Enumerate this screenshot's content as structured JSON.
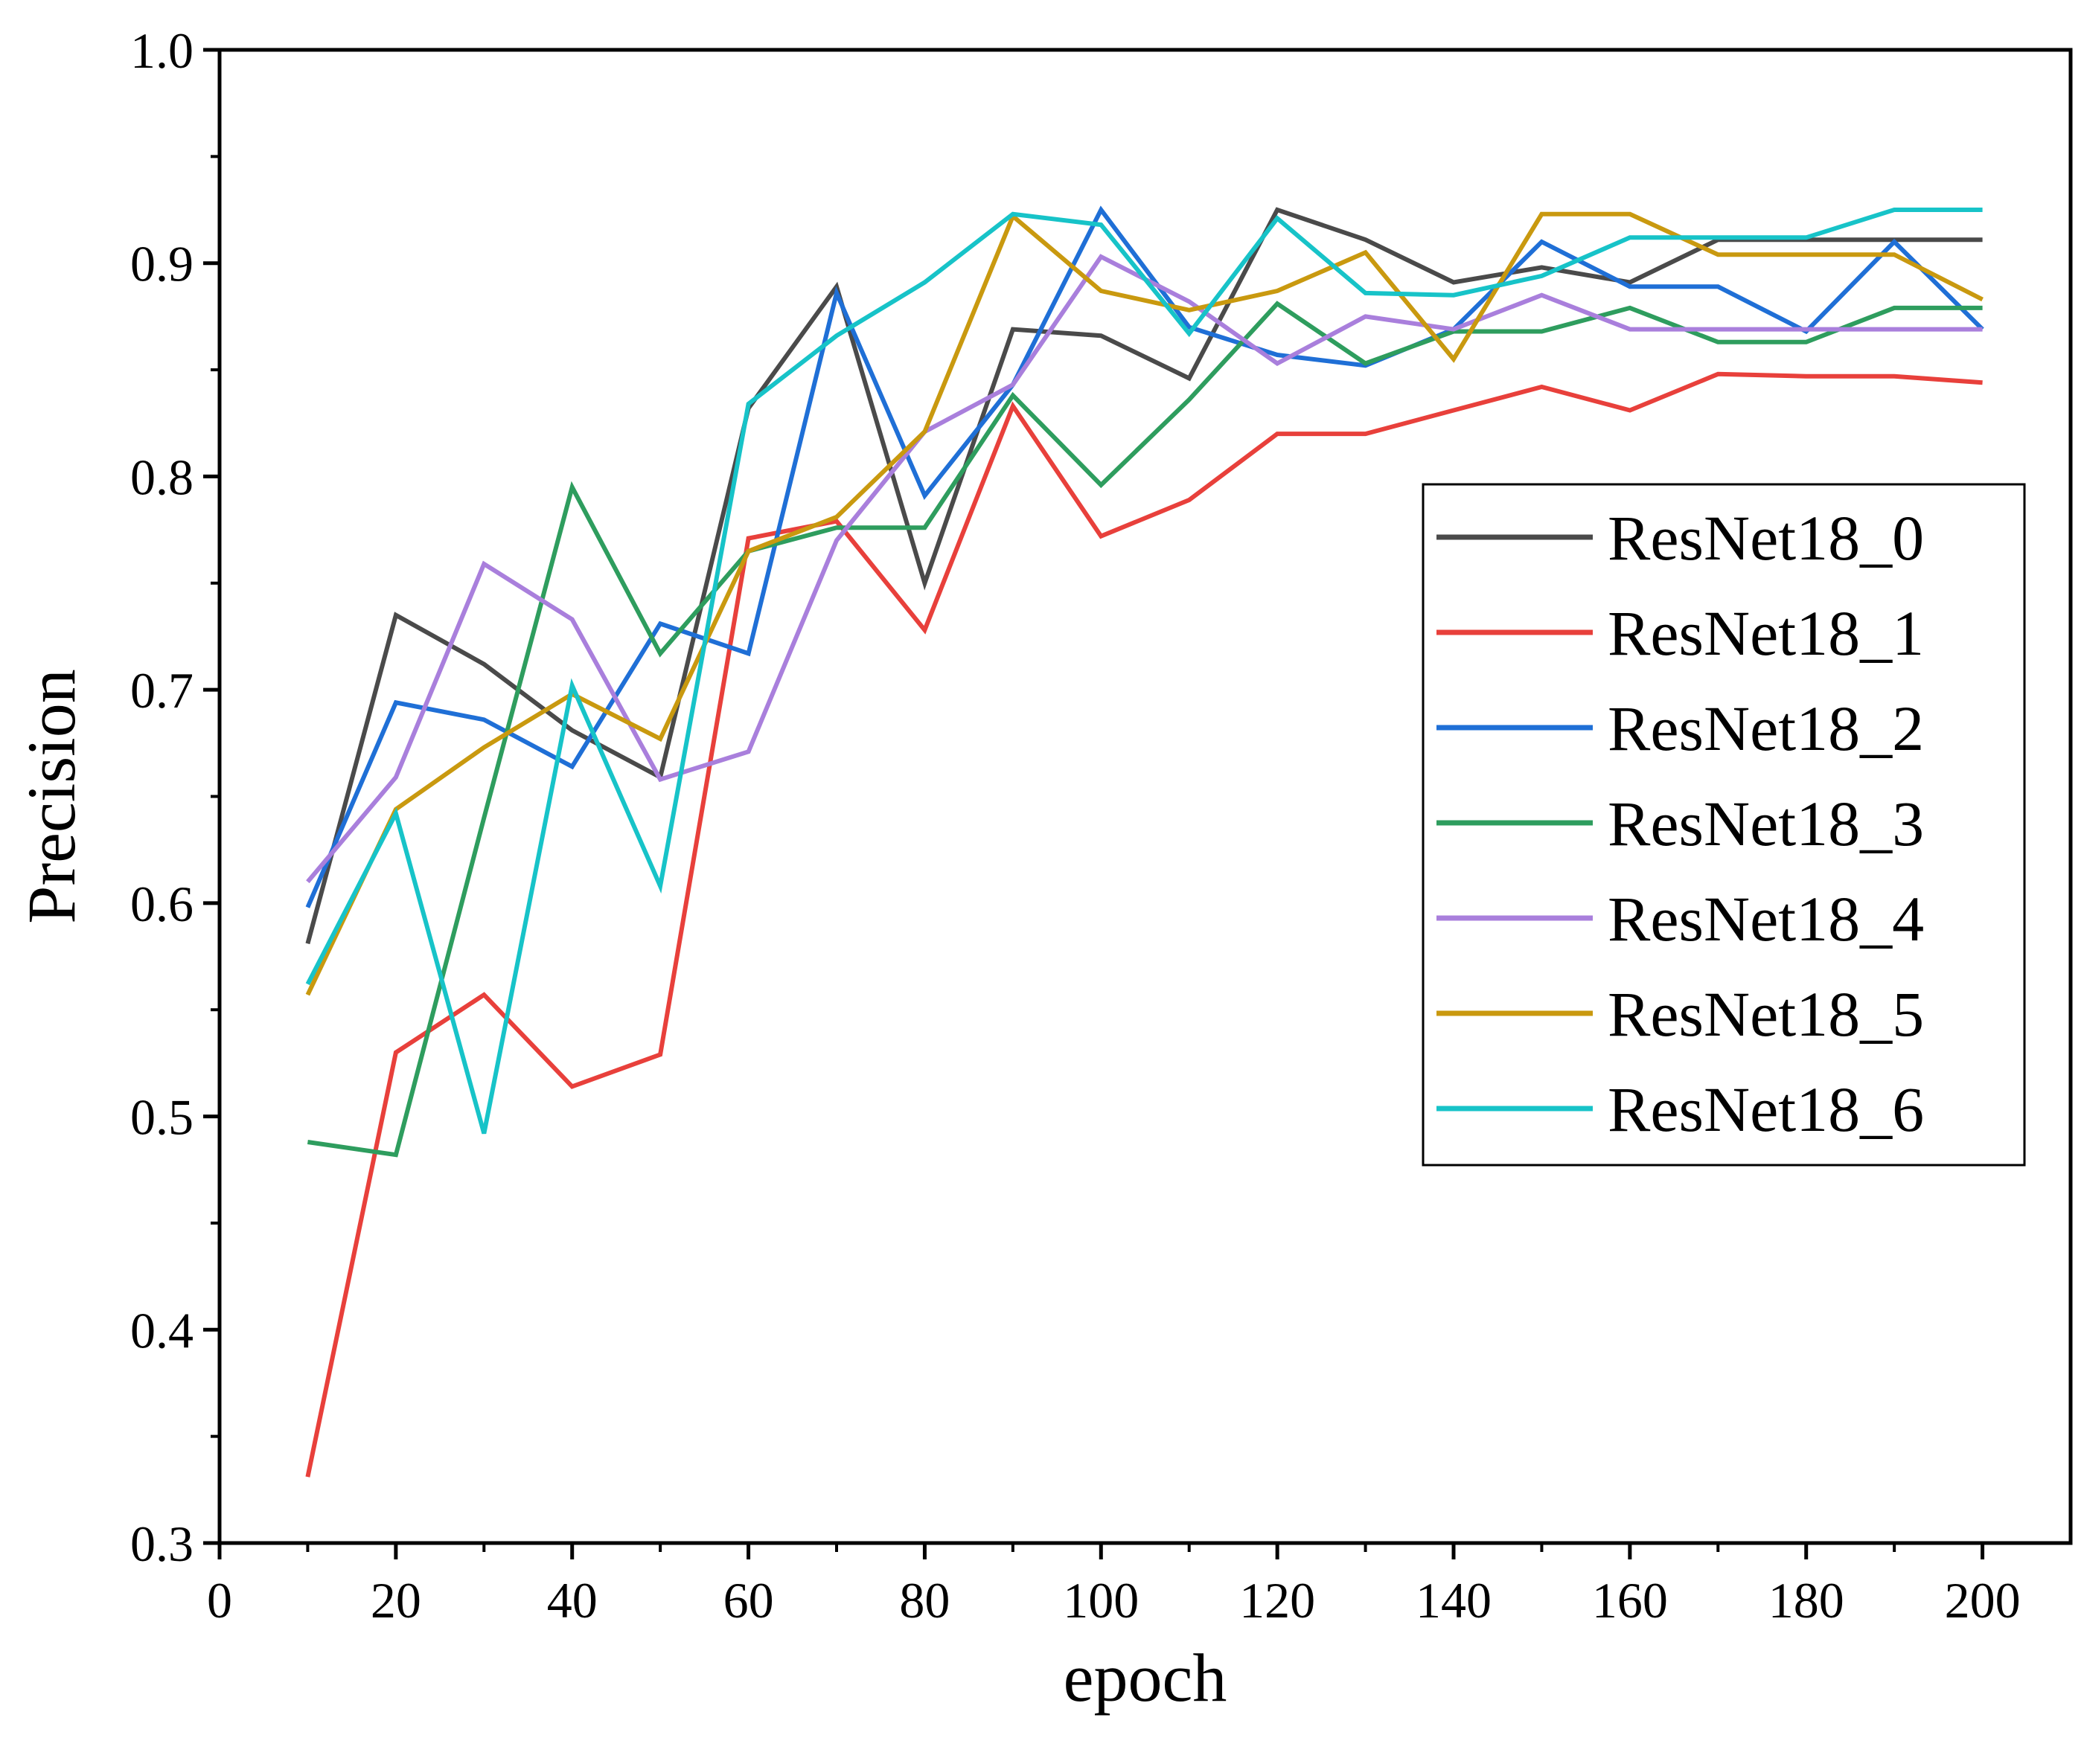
{
  "chart_data": {
    "type": "line",
    "title": "",
    "xlabel": "epoch",
    "ylabel": "Precision",
    "xlim": [
      0,
      210
    ],
    "ylim": [
      0.3,
      1.0
    ],
    "x_ticks": [
      0,
      20,
      40,
      60,
      80,
      100,
      120,
      140,
      160,
      180,
      200
    ],
    "x_tick_labels": [
      "0",
      "20",
      "40",
      "60",
      "80",
      "100",
      "120",
      "140",
      "160",
      "180",
      "200"
    ],
    "y_ticks": [
      0.3,
      0.4,
      0.5,
      0.6,
      0.7,
      0.8,
      0.9,
      1.0
    ],
    "y_tick_labels": [
      "0.3",
      "0.4",
      "0.5",
      "0.6",
      "0.7",
      "0.8",
      "0.9",
      "1.0"
    ],
    "grid": false,
    "legend_position": "right",
    "x": [
      10,
      20,
      30,
      40,
      50,
      60,
      70,
      80,
      90,
      100,
      110,
      120,
      130,
      140,
      150,
      160,
      170,
      180,
      190,
      200
    ],
    "series": [
      {
        "name": "ResNet18_0",
        "color": "#4a4a4a",
        "values": [
          0.581,
          0.735,
          0.712,
          0.681,
          0.659,
          0.832,
          0.889,
          0.75,
          0.869,
          0.866,
          0.846,
          0.925,
          0.911,
          0.891,
          0.898,
          0.891,
          0.911,
          0.911,
          0.911,
          0.911
        ]
      },
      {
        "name": "ResNet18_1",
        "color": "#e8403b",
        "values": [
          0.331,
          0.53,
          0.557,
          0.514,
          0.529,
          0.771,
          0.779,
          0.728,
          0.833,
          0.772,
          0.789,
          0.82,
          0.82,
          0.831,
          0.842,
          0.831,
          0.848,
          0.847,
          0.847,
          0.844
        ]
      },
      {
        "name": "ResNet18_2",
        "color": "#1f6fd6",
        "values": [
          0.598,
          0.694,
          0.686,
          0.664,
          0.731,
          0.717,
          0.886,
          0.791,
          0.843,
          0.925,
          0.87,
          0.857,
          0.852,
          0.869,
          0.91,
          0.889,
          0.889,
          0.868,
          0.91,
          0.869
        ]
      },
      {
        "name": "ResNet18_3",
        "color": "#2e9d5e",
        "values": [
          0.488,
          0.482,
          0.64,
          0.795,
          0.717,
          0.765,
          0.776,
          0.776,
          0.838,
          0.796,
          0.836,
          0.881,
          0.853,
          0.868,
          0.868,
          0.879,
          0.863,
          0.863,
          0.879,
          0.879
        ]
      },
      {
        "name": "ResNet18_4",
        "color": "#a97fdc",
        "values": [
          0.61,
          0.659,
          0.759,
          0.733,
          0.658,
          0.671,
          0.77,
          0.821,
          0.843,
          0.903,
          0.882,
          0.853,
          0.875,
          0.869,
          0.885,
          0.869,
          0.869,
          0.869,
          0.869,
          0.869
        ]
      },
      {
        "name": "ResNet18_5",
        "color": "#c9990f",
        "values": [
          0.557,
          0.644,
          0.673,
          0.698,
          0.677,
          0.765,
          0.781,
          0.821,
          0.922,
          0.887,
          0.878,
          0.887,
          0.905,
          0.855,
          0.923,
          0.923,
          0.904,
          0.904,
          0.904,
          0.883
        ]
      },
      {
        "name": "ResNet18_6",
        "color": "#17c3c8",
        "values": [
          0.562,
          0.642,
          0.492,
          0.702,
          0.608,
          0.834,
          0.866,
          0.891,
          0.923,
          0.918,
          0.867,
          0.921,
          0.886,
          0.885,
          0.894,
          0.912,
          0.912,
          0.912,
          0.925,
          0.925
        ]
      }
    ]
  }
}
